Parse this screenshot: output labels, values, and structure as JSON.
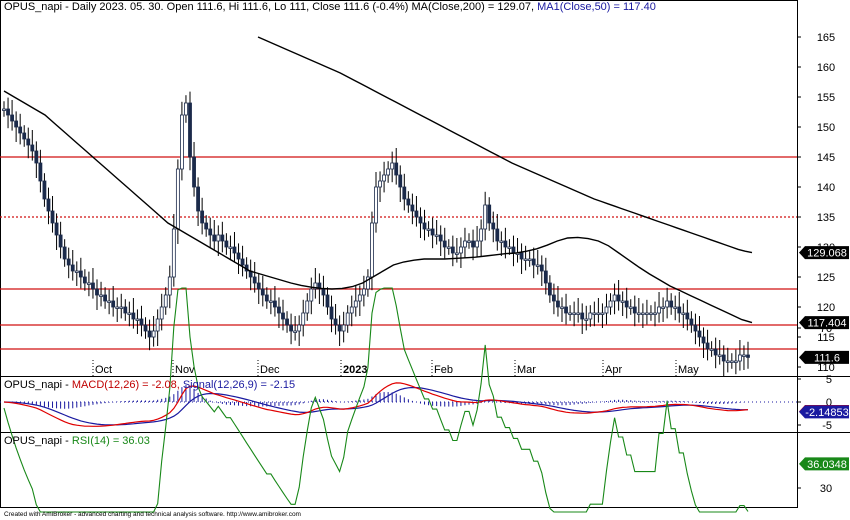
{
  "chart_data": {
    "type": "line",
    "symbol": "OPUS_napi",
    "panels": [
      {
        "name": "price",
        "header": {
          "main": "OPUS_napi - Daily 2023. 05. 30. Open 111.6, Hi 111.6, Lo 111, Close 111.6 (-0.4%) MA(Close,200) = 129.07,",
          "ma50": "MA1(Close,50) = 117.40"
        },
        "y_ticks": [
          "110",
          "115",
          "120",
          "125",
          "130",
          "135",
          "140",
          "145",
          "150",
          "155",
          "160",
          "165"
        ],
        "ylim": [
          108,
          167
        ],
        "x_ticks": [
          "Oct",
          "Nov",
          "Dec",
          "2023",
          "Feb",
          "Mar",
          "Apr",
          "May"
        ],
        "horizontal_lines": [
          {
            "value": 145,
            "style": "solid",
            "color": "#d01010"
          },
          {
            "value": 135,
            "style": "dotted",
            "color": "#d01010"
          },
          {
            "value": 123,
            "style": "solid",
            "color": "#d01010"
          },
          {
            "value": 117,
            "style": "solid",
            "color": "#d01010"
          },
          {
            "value": 113,
            "style": "solid",
            "color": "#d01010"
          }
        ],
        "close_series": [
          153,
          152,
          151,
          150,
          149,
          148,
          147,
          146,
          144,
          141,
          138,
          136,
          134,
          132,
          130,
          128,
          127,
          126,
          126,
          125,
          124,
          124,
          123,
          122,
          122,
          121,
          121,
          120,
          120,
          120,
          119,
          119,
          118,
          118,
          117,
          116,
          115,
          116,
          118,
          120,
          122,
          125,
          133,
          143,
          152,
          154,
          145,
          140,
          136,
          134,
          133,
          132,
          131,
          132,
          131,
          130,
          130,
          129,
          128,
          127,
          126,
          125,
          124,
          123,
          122,
          121,
          121,
          120,
          119,
          118,
          117,
          116,
          116,
          117,
          119,
          121,
          123,
          124,
          123,
          122,
          120,
          118,
          117,
          116,
          117,
          119,
          120,
          121,
          122,
          123,
          125,
          134,
          140,
          141,
          142,
          143,
          144,
          142,
          140,
          138,
          137,
          136,
          135,
          134,
          133,
          133,
          132,
          132,
          131,
          130,
          130,
          129,
          129,
          130,
          131,
          131,
          130,
          131,
          133,
          137,
          134,
          133,
          131,
          131,
          130,
          130,
          129,
          129,
          128,
          128,
          128,
          127,
          127,
          126,
          124,
          122,
          121,
          120,
          120,
          119,
          119,
          119,
          119,
          118,
          118,
          119,
          119,
          119,
          119,
          120,
          121,
          122,
          121,
          121,
          120,
          120,
          119,
          119,
          119,
          119,
          119,
          119,
          120,
          120,
          121,
          120,
          120,
          119,
          119,
          118,
          117,
          116,
          115,
          114,
          113,
          113,
          112,
          112,
          111,
          111,
          111,
          111,
          112,
          112,
          111.6
        ],
        "ma200": [
          165,
          164.5,
          164,
          163.5,
          163,
          162.5,
          162,
          161.5,
          161,
          160.5,
          160,
          159.5,
          159,
          158.4,
          157.8,
          157.2,
          156.6,
          156,
          155.4,
          154.8,
          154.2,
          153.6,
          153,
          152.4,
          151.8,
          151.2,
          150.6,
          150,
          149.4,
          148.8,
          148.2,
          147.6,
          147,
          146.4,
          145.8,
          145.2,
          144.6,
          144,
          143.5,
          143,
          142.5,
          142,
          141.5,
          141,
          140.5,
          140,
          139.5,
          139,
          138.5,
          138,
          137.6,
          137.2,
          136.8,
          136.4,
          136,
          135.6,
          135.2,
          134.8,
          134.4,
          134,
          133.6,
          133.2,
          132.8,
          132.4,
          132,
          131.6,
          131.2,
          130.8,
          130.4,
          130,
          129.6,
          129.3,
          129.07
        ],
        "ma50": [
          156,
          155,
          154,
          153,
          152,
          150.5,
          149,
          147.5,
          146,
          144.5,
          143,
          141.5,
          140,
          138.5,
          137,
          135.5,
          134,
          133,
          132,
          131,
          130,
          129,
          128,
          127,
          126,
          125.5,
          125,
          124.5,
          124,
          123.6,
          123.3,
          123.1,
          123,
          123.1,
          123.4,
          124,
          125,
          126,
          127,
          127.5,
          127.8,
          128,
          128,
          128,
          128.1,
          128.2,
          128.3,
          128.5,
          128.7,
          128.9,
          129,
          129.3,
          129.7,
          130.3,
          131,
          131.5,
          131.6,
          131.4,
          131,
          130.2,
          129,
          127.8,
          126.6,
          125.5,
          124.5,
          123.5,
          122.7,
          121.9,
          121.1,
          120.3,
          119.5,
          118.7,
          117.9,
          117.4
        ]
      },
      {
        "name": "macd",
        "header": {
          "prefix": "OPUS_napi - ",
          "macd": "MACD(12,26) = -2.08,",
          "signal": "Signal(12,26,9) = -2.15"
        },
        "y_ticks": [
          "5",
          "0",
          "-5"
        ],
        "ylim": [
          -7,
          7
        ]
      },
      {
        "name": "rsi",
        "header": {
          "prefix": "OPUS_napi - ",
          "rsi": "RSI(14) = 36.03"
        },
        "y_ticks": [
          "70",
          "30"
        ],
        "ylim": [
          22,
          82
        ]
      }
    ],
    "value_tags": [
      {
        "label": "129.068",
        "value": 129.068,
        "panel": "price",
        "bg": "#000000",
        "fg": "#ffffff"
      },
      {
        "label": "117.404",
        "value": 117.404,
        "panel": "price",
        "bg": "#000000",
        "fg": "#ffffff"
      },
      {
        "label": "111.6",
        "value": 111.6,
        "panel": "price",
        "bg": "#000000",
        "fg": "#ffffff"
      },
      {
        "label": "-2.077",
        "value": -2.077,
        "panel": "macd",
        "bg": "#e00000",
        "fg": "#ffffff"
      },
      {
        "label": "-2.14853",
        "value": -2.14853,
        "panel": "macd",
        "bg": "#1a1aa0",
        "fg": "#ffffff"
      },
      {
        "label": "36.0348",
        "value": 36.0348,
        "panel": "rsi",
        "bg": "#188818",
        "fg": "#ffffff"
      }
    ],
    "footer": "Created with AmiBroker - advanced charting and technical analysis software. http://www.amibroker.com"
  }
}
